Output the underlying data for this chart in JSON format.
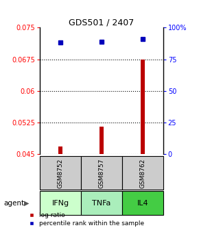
{
  "title": "GDS501 / 2407",
  "samples": [
    "GSM8752",
    "GSM8757",
    "GSM8762"
  ],
  "agents": [
    "IFNg",
    "TNFa",
    "IL4"
  ],
  "log_ratio": [
    0.0468,
    0.0515,
    0.0675
  ],
  "percentile_rank_pct": [
    88,
    89,
    91
  ],
  "left_ylim": [
    0.045,
    0.075
  ],
  "left_yticks": [
    0.045,
    0.0525,
    0.06,
    0.0675,
    0.075
  ],
  "left_yticklabels": [
    "0.045",
    "0.0525",
    "0.06",
    "0.0675",
    "0.075"
  ],
  "right_yticks": [
    0,
    25,
    50,
    75,
    100
  ],
  "right_yticklabels": [
    "0",
    "25",
    "50",
    "75",
    "100%"
  ],
  "bar_color": "#bb0000",
  "dot_color": "#0000bb",
  "agent_colors": [
    "#ccffcc",
    "#aaeebb",
    "#44cc44"
  ],
  "sample_bg_color": "#cccccc",
  "legend_log_ratio": "log ratio",
  "legend_percentile": "percentile rank within the sample",
  "x_positions": [
    0.5,
    1.5,
    2.5
  ],
  "xlim": [
    0,
    3
  ]
}
